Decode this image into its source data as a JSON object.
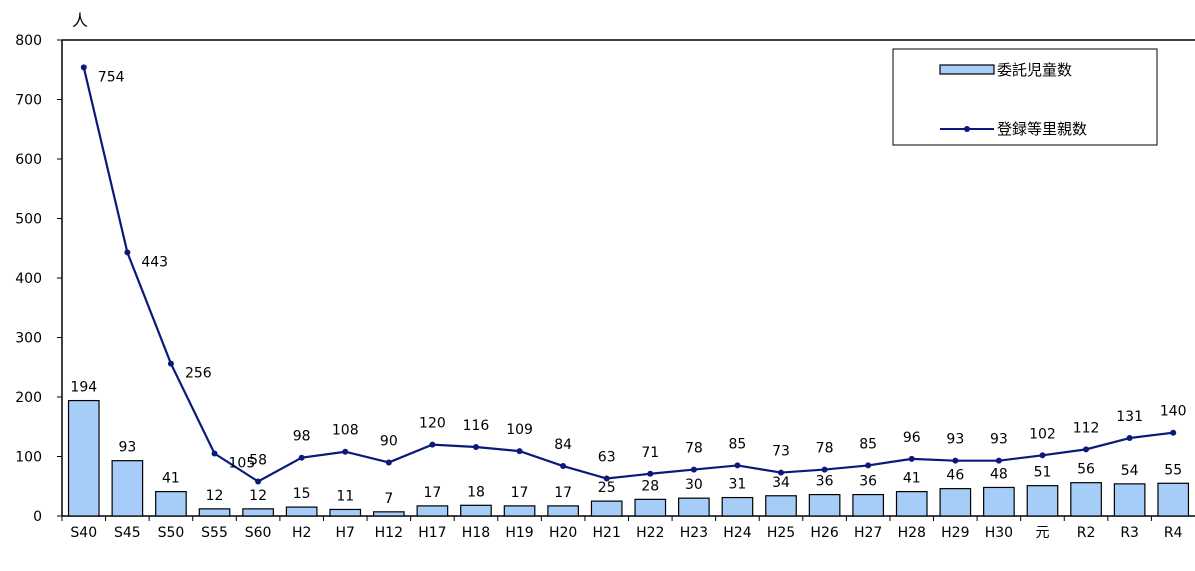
{
  "chart_data": {
    "type": "bar+line",
    "y_unit": "人",
    "ylim": [
      0,
      800
    ],
    "y_ticks": [
      0,
      100,
      200,
      300,
      400,
      500,
      600,
      700,
      800
    ],
    "grid": false,
    "legend_position": "top-right",
    "categories": [
      "S40",
      "S45",
      "S50",
      "S55",
      "S60",
      "H2",
      "H7",
      "H12",
      "H17",
      "H18",
      "H19",
      "H20",
      "H21",
      "H22",
      "H23",
      "H24",
      "H25",
      "H26",
      "H27",
      "H28",
      "H29",
      "H30",
      "元",
      "R2",
      "R3",
      "R4"
    ],
    "series": [
      {
        "name": "委託児童数",
        "type": "bar",
        "color": "#a6cdf7",
        "values": [
          194,
          93,
          41,
          12,
          12,
          15,
          11,
          7,
          17,
          18,
          17,
          17,
          25,
          28,
          30,
          31,
          34,
          36,
          36,
          41,
          46,
          48,
          51,
          56,
          54,
          55
        ]
      },
      {
        "name": "登録等里親数",
        "type": "line",
        "color": "#0a1a7a",
        "values": [
          754,
          443,
          256,
          105,
          58,
          98,
          108,
          90,
          120,
          116,
          109,
          84,
          63,
          71,
          78,
          85,
          73,
          78,
          85,
          96,
          93,
          93,
          102,
          112,
          131,
          140
        ]
      }
    ]
  }
}
